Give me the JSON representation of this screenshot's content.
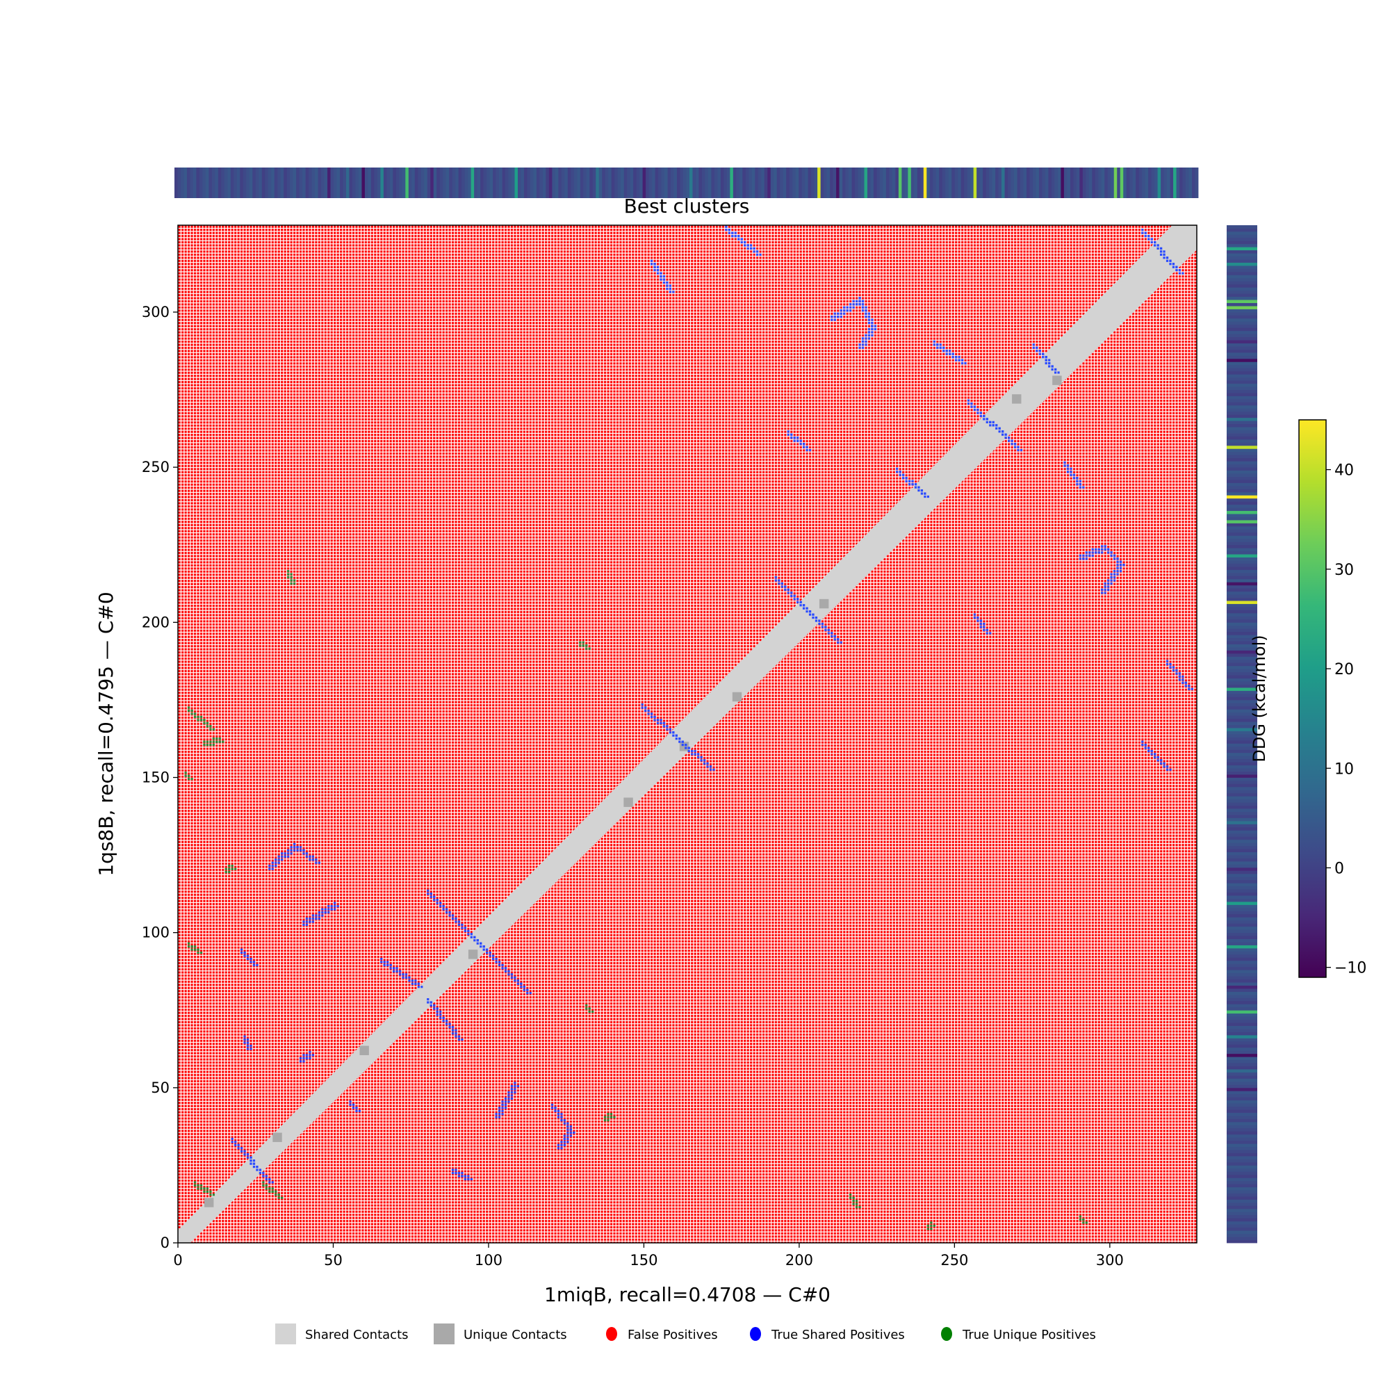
{
  "chart_data": {
    "type": "heatmap",
    "title": "Best clusters",
    "xlabel": "1miqB, recall=0.4708 — C#0",
    "ylabel": "1qs8B, recall=0.4795 — C#0",
    "xlim": [
      0,
      328
    ],
    "ylim": [
      0,
      328
    ],
    "xticks": [
      0,
      50,
      100,
      150,
      200,
      250,
      300
    ],
    "yticks": [
      0,
      50,
      100,
      150,
      200,
      250,
      300
    ],
    "background_class": "False Positives",
    "diagonal_band_halfwidth": 4,
    "legend": {
      "placement": "bottom-center",
      "entries": [
        {
          "label": "Shared Contacts",
          "color": "#d3d3d3",
          "marker": "square"
        },
        {
          "label": "Unique Contacts",
          "color": "#a9a9a9",
          "marker": "square"
        },
        {
          "label": "False Positives",
          "color": "#ff0000",
          "marker": "circle"
        },
        {
          "label": "True Shared Positives",
          "color": "#0000ff",
          "marker": "circle"
        },
        {
          "label": "True Unique Positives",
          "color": "#008000",
          "marker": "circle"
        }
      ]
    },
    "true_shared_clusters": [
      [
        [
          80,
          112
        ],
        [
          112,
          80
        ]
      ],
      [
        [
          80,
          77
        ],
        [
          90,
          65
        ]
      ],
      [
        [
          65,
          90
        ],
        [
          77,
          82
        ]
      ],
      [
        [
          29,
          120
        ],
        [
          37,
          127
        ],
        [
          44,
          122
        ]
      ],
      [
        [
          40,
          102
        ],
        [
          50,
          108
        ]
      ],
      [
        [
          20,
          93
        ],
        [
          24,
          89
        ]
      ],
      [
        [
          17,
          32
        ],
        [
          29,
          19
        ]
      ],
      [
        [
          88,
          22
        ],
        [
          93,
          20
        ]
      ],
      [
        [
          102,
          40
        ],
        [
          108,
          50
        ]
      ],
      [
        [
          120,
          43
        ],
        [
          126,
          35
        ],
        [
          122,
          30
        ]
      ],
      [
        [
          149,
          172
        ],
        [
          171,
          152
        ]
      ],
      [
        [
          192,
          213
        ],
        [
          212,
          193
        ]
      ],
      [
        [
          196,
          260
        ],
        [
          202,
          255
        ]
      ],
      [
        [
          152,
          315
        ],
        [
          158,
          306
        ]
      ],
      [
        [
          176,
          326
        ],
        [
          186,
          318
        ]
      ],
      [
        [
          210,
          297
        ],
        [
          219,
          303
        ],
        [
          223,
          294
        ],
        [
          219,
          288
        ]
      ],
      [
        [
          243,
          289
        ],
        [
          252,
          283
        ]
      ],
      [
        [
          254,
          270
        ],
        [
          270,
          255
        ]
      ],
      [
        [
          275,
          288
        ],
        [
          282,
          280
        ]
      ],
      [
        [
          285,
          250
        ],
        [
          290,
          243
        ]
      ],
      [
        [
          290,
          220
        ],
        [
          298,
          223
        ],
        [
          303,
          218
        ],
        [
          297,
          209
        ]
      ],
      [
        [
          256,
          201
        ],
        [
          260,
          196
        ]
      ],
      [
        [
          318,
          186
        ],
        [
          325,
          178
        ]
      ],
      [
        [
          310,
          160
        ],
        [
          318,
          152
        ]
      ],
      [
        [
          310,
          325
        ],
        [
          322,
          312
        ]
      ],
      [
        [
          231,
          248
        ],
        [
          240,
          240
        ]
      ],
      [
        [
          55,
          44
        ],
        [
          57,
          42
        ]
      ],
      [
        [
          39,
          58
        ],
        [
          42,
          60
        ]
      ],
      [
        [
          21,
          65
        ],
        [
          22,
          62
        ]
      ]
    ],
    "true_unique_clusters": [
      [
        [
          3,
          171
        ],
        [
          10,
          165
        ]
      ],
      [
        [
          8,
          160
        ],
        [
          13,
          161
        ]
      ],
      [
        [
          2,
          150
        ],
        [
          3,
          149
        ]
      ],
      [
        [
          5,
          18
        ],
        [
          10,
          15
        ]
      ],
      [
        [
          27,
          18
        ],
        [
          32,
          14
        ]
      ],
      [
        [
          35,
          215
        ],
        [
          36,
          212
        ]
      ],
      [
        [
          129,
          192
        ],
        [
          131,
          191
        ]
      ],
      [
        [
          137,
          39
        ],
        [
          139,
          40
        ]
      ],
      [
        [
          216,
          14
        ],
        [
          218,
          11
        ]
      ],
      [
        [
          290,
          7
        ],
        [
          291,
          6
        ]
      ],
      [
        [
          241,
          4
        ],
        [
          242,
          5
        ]
      ],
      [
        [
          3,
          95
        ],
        [
          6,
          93
        ]
      ],
      [
        [
          15,
          119
        ],
        [
          17,
          120
        ]
      ],
      [
        [
          131,
          75
        ],
        [
          132,
          74
        ]
      ]
    ],
    "unique_contact_blobs": [
      [
        10,
        13
      ],
      [
        32,
        34
      ],
      [
        60,
        62
      ],
      [
        95,
        93
      ],
      [
        145,
        142
      ],
      [
        163,
        160
      ],
      [
        180,
        176
      ],
      [
        208,
        206
      ],
      [
        270,
        272
      ],
      [
        283,
        278
      ]
    ],
    "ddg_colorbar": {
      "label": "DDG (kcal/mol)",
      "range": [
        -11,
        45
      ],
      "ticks": [
        "−10",
        "0",
        "10",
        "20",
        "30",
        "40"
      ],
      "tick_values": [
        -10,
        0,
        10,
        20,
        30,
        40
      ],
      "colormap": "viridis"
    },
    "ddg_profile": {
      "baseline": 2,
      "residue_count": 328,
      "highlights": [
        [
          49,
          -6
        ],
        [
          55,
          8
        ],
        [
          60,
          -9
        ],
        [
          66,
          14
        ],
        [
          74,
          28
        ],
        [
          82,
          -5
        ],
        [
          95,
          22
        ],
        [
          109,
          20
        ],
        [
          120,
          -4
        ],
        [
          135,
          10
        ],
        [
          150,
          -6
        ],
        [
          165,
          12
        ],
        [
          178,
          24
        ],
        [
          190,
          -5
        ],
        [
          206,
          42
        ],
        [
          212,
          -8
        ],
        [
          221,
          22
        ],
        [
          232,
          30
        ],
        [
          235,
          28
        ],
        [
          240,
          45
        ],
        [
          256,
          40
        ],
        [
          265,
          10
        ],
        [
          284,
          -9
        ],
        [
          290,
          -4
        ],
        [
          301,
          33
        ],
        [
          303,
          31
        ],
        [
          315,
          16
        ],
        [
          320,
          22
        ]
      ]
    }
  }
}
